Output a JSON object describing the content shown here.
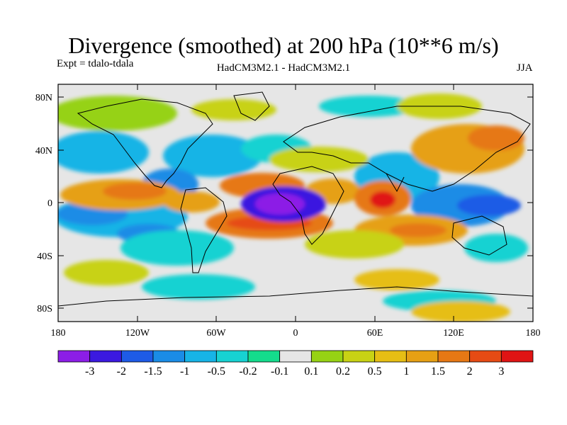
{
  "title": "Divergence (smoothed) at 200 hPa (10**6 m/s)",
  "experiment": "Expt = tdalo-tdala",
  "models": "HadCM3M2.1 - HadCM3M2.1",
  "season": "JJA",
  "map": {
    "lat_labels": [
      "80N",
      "40N",
      "0",
      "40S",
      "80S"
    ],
    "lat_values": [
      80,
      40,
      0,
      -40,
      -80
    ],
    "lon_labels": [
      "180",
      "120W",
      "60W",
      "0",
      "60E",
      "120E",
      "180"
    ],
    "lon_values": [
      -180,
      -120,
      -60,
      0,
      60,
      120,
      180
    ],
    "extent": {
      "lon": [
        -180,
        180
      ],
      "lat": [
        -90,
        90
      ]
    }
  },
  "colorbar": {
    "colors": [
      "#8c1ee6",
      "#3b19e0",
      "#1e5be6",
      "#1a8ce6",
      "#17b4e6",
      "#17d2d2",
      "#14dc8c",
      "#e6e6e6",
      "#96d214",
      "#c8d214",
      "#e6be14",
      "#e6a014",
      "#e67814",
      "#e64b14",
      "#e01414"
    ],
    "labels": [
      "-3",
      "-2",
      "-1.5",
      "-1",
      "-0.5",
      "-0.2",
      "-0.1",
      "0.1",
      "0.2",
      "0.5",
      "1",
      "1.5",
      "2",
      "3"
    ]
  },
  "field_features": [
    {
      "lon": -5,
      "lat": -3,
      "level": -7
    },
    {
      "lon": 65,
      "lat": 5,
      "level": 7
    },
    {
      "lon": 35,
      "lat": 5,
      "level": 5
    },
    {
      "lon": -45,
      "lat": 10,
      "level": 5
    },
    {
      "lon": -25,
      "lat": -20,
      "level": 5
    },
    {
      "lon": 80,
      "lat": -15,
      "level": 5
    },
    {
      "lon": 140,
      "lat": -2,
      "level": -5
    },
    {
      "lon": -155,
      "lat": -10,
      "level": -4
    },
    {
      "lon": -120,
      "lat": -25,
      "level": -4
    },
    {
      "lon": -130,
      "lat": 0,
      "level": 4
    },
    {
      "lon": 100,
      "lat": 45,
      "level": 4
    },
    {
      "lon": -60,
      "lat": 35,
      "level": -4
    }
  ]
}
